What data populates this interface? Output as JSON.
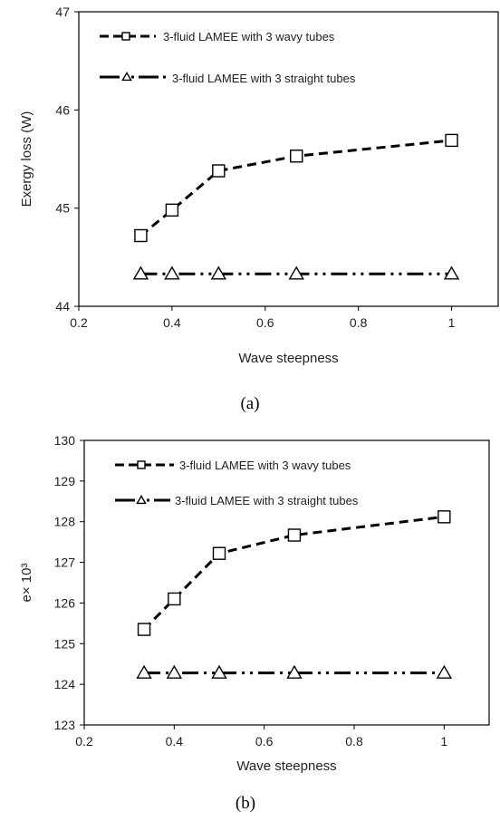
{
  "chart_data": [
    {
      "type": "line",
      "xlabel": "Wave steepness",
      "ylabel": "Exergy loss (W)",
      "caption": "(a)",
      "xlim": [
        0.2,
        1.1
      ],
      "ylim": [
        44,
        47
      ],
      "xticks": [
        "0.2",
        "0.4",
        "0.6",
        "0.8",
        "1"
      ],
      "yticks": [
        "44",
        "45",
        "46",
        "47"
      ],
      "grid": false,
      "legend_position": "top-left",
      "series": [
        {
          "name": "3-fluid LAMEE with 3 wavy tubes",
          "marker": "square",
          "dash": "dashed",
          "x": [
            0.333,
            0.4,
            0.5,
            0.667,
            1.0
          ],
          "y": [
            44.72,
            44.98,
            45.38,
            45.53,
            45.69
          ]
        },
        {
          "name": "3-fluid LAMEE with 3 straight tubes",
          "marker": "triangle",
          "dash": "dash-dot-dot",
          "x": [
            0.333,
            0.4,
            0.5,
            0.667,
            1.0
          ],
          "y": [
            44.33,
            44.33,
            44.33,
            44.33,
            44.33
          ]
        }
      ]
    },
    {
      "type": "line",
      "xlabel": "Wave steepness",
      "ylabel": "e× 10³",
      "caption": "(b)",
      "xlim": [
        0.2,
        1.1
      ],
      "ylim": [
        123,
        130
      ],
      "xticks": [
        "0.2",
        "0.4",
        "0.6",
        "0.8",
        "1"
      ],
      "yticks": [
        "123",
        "124",
        "125",
        "126",
        "127",
        "128",
        "129",
        "130"
      ],
      "grid": false,
      "legend_position": "top-left",
      "series": [
        {
          "name": "3-fluid LAMEE with 3 wavy tubes",
          "marker": "square",
          "dash": "dashed",
          "x": [
            0.333,
            0.4,
            0.5,
            0.667,
            1.0
          ],
          "y": [
            125.35,
            126.1,
            127.22,
            127.67,
            128.12
          ]
        },
        {
          "name": "3-fluid LAMEE with 3 straight tubes",
          "marker": "triangle",
          "dash": "dash-dot-dot",
          "x": [
            0.333,
            0.4,
            0.5,
            0.667,
            1.0
          ],
          "y": [
            124.28,
            124.28,
            124.28,
            124.28,
            124.28
          ]
        }
      ]
    }
  ]
}
